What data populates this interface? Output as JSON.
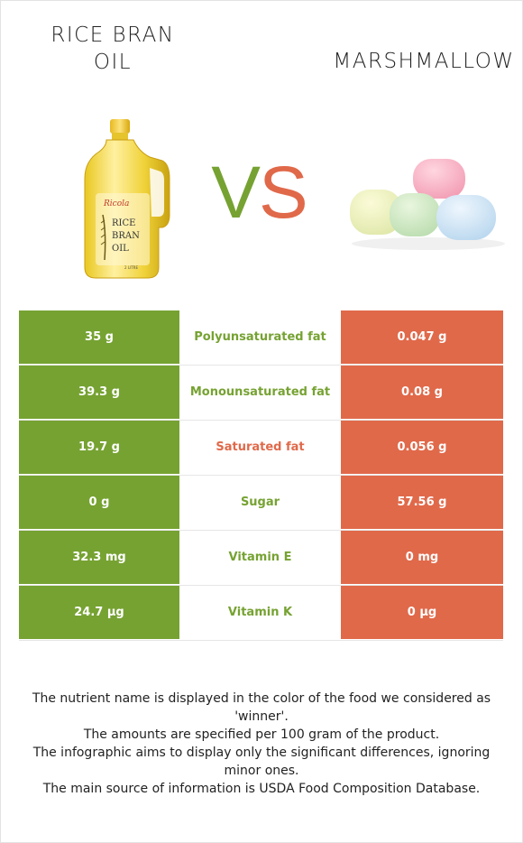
{
  "header": {
    "left_title_line1": "RICE BRAN",
    "left_title_line2": "OIL",
    "right_title": "MARSHMALLOW",
    "vs_v": "V",
    "vs_s": "S"
  },
  "colors": {
    "winner_left": "#76a232",
    "winner_right": "#e0694a"
  },
  "images": {
    "left": "rice-bran-oil-bottle",
    "right": "marshmallows",
    "bottle_label_brand": "Ricola",
    "bottle_label_line1": "RICE",
    "bottle_label_line2": "BRAN",
    "bottle_label_line3": "OIL",
    "bottle_label_volume": "2 LITRE"
  },
  "rows": [
    {
      "left": "35 g",
      "nutrient": "Polyunsaturated fat",
      "right": "0.047 g",
      "winner": "left"
    },
    {
      "left": "39.3 g",
      "nutrient": "Monounsaturated fat",
      "right": "0.08 g",
      "winner": "left"
    },
    {
      "left": "19.7 g",
      "nutrient": "Saturated fat",
      "right": "0.056 g",
      "winner": "right"
    },
    {
      "left": "0 g",
      "nutrient": "Sugar",
      "right": "57.56 g",
      "winner": "left"
    },
    {
      "left": "32.3 mg",
      "nutrient": "Vitamin E",
      "right": "0 mg",
      "winner": "left"
    },
    {
      "left": "24.7 µg",
      "nutrient": "Vitamin K",
      "right": "0 µg",
      "winner": "left"
    }
  ],
  "footer": {
    "line1": "The nutrient name is displayed in the color of the food we considered as 'winner'.",
    "line2": "The amounts are specified per 100 gram of the product.",
    "line3": "The infographic aims to display only the significant differences, ignoring minor ones.",
    "line4": "The main source of information is USDA Food Composition Database."
  }
}
